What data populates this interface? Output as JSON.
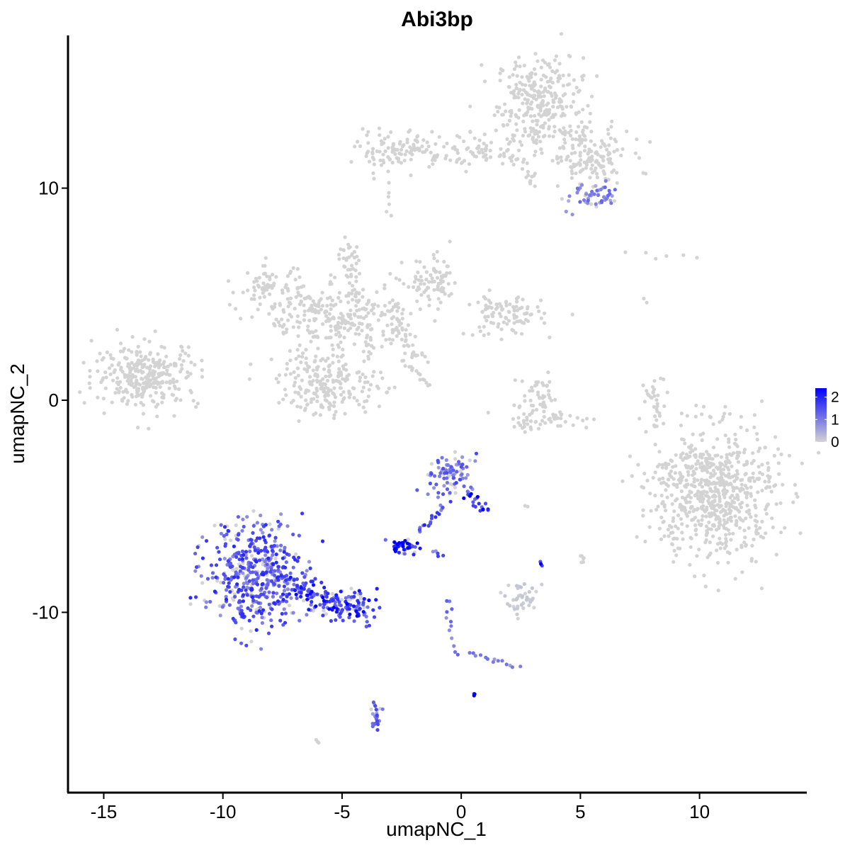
{
  "chart_data": {
    "type": "scatter",
    "title": "Abi3bp",
    "xlabel": "umapNC_1",
    "ylabel": "umapNC_2",
    "xlim": [
      -16.5,
      14.5
    ],
    "ylim": [
      -18.5,
      17.2
    ],
    "x_ticks": [
      -15,
      -10,
      -5,
      0,
      5,
      10
    ],
    "x_tick_labels": [
      "-15",
      "-10",
      "-5",
      "0",
      "5",
      "10"
    ],
    "y_ticks": [
      -10,
      0,
      10
    ],
    "y_tick_labels": [
      "-10",
      "0",
      "10"
    ],
    "grid": false,
    "legend": {
      "placement": "right",
      "type": "color-gradient",
      "range": [
        0,
        2.4
      ],
      "ticks": [
        0,
        1,
        2
      ],
      "tick_labels": [
        "0",
        "1",
        "2"
      ],
      "low_color": "#d3d3d3",
      "high_color": "#0000ff"
    },
    "point_color_low": "#d3d3d3",
    "point_color_high": "#0000ff",
    "clusters": [
      {
        "cx": 3.3,
        "cy": 14.0,
        "sx": 0.9,
        "sy": 1.1,
        "n": 300,
        "expr": 0.0,
        "shape": "ellipse"
      },
      {
        "cx": 5.3,
        "cy": 11.5,
        "sx": 0.9,
        "sy": 0.7,
        "n": 150,
        "expr": 0.0,
        "shape": "ellipse"
      },
      {
        "cx": -2.6,
        "cy": 11.8,
        "sx": 0.9,
        "sy": 0.45,
        "n": 110,
        "expr": 0.0,
        "shape": "ellipse"
      },
      {
        "cx": 0.9,
        "cy": 11.8,
        "sx": 0.7,
        "sy": 0.4,
        "n": 50,
        "expr": 0.0,
        "shape": "ellipse"
      },
      {
        "cx": 5.4,
        "cy": 9.5,
        "sx": 0.5,
        "sy": 0.4,
        "n": 55,
        "expr": 0.35,
        "shape": "ellipse"
      },
      {
        "cx": -13.2,
        "cy": 1.2,
        "sx": 1.1,
        "sy": 0.75,
        "n": 300,
        "expr": 0.0,
        "shape": "ellipse"
      },
      {
        "cx": -5.2,
        "cy": 3.8,
        "sx": 1.5,
        "sy": 0.8,
        "n": 220,
        "expr": 0.0,
        "shape": "ellipse"
      },
      {
        "cx": -8.0,
        "cy": 5.3,
        "sx": 0.7,
        "sy": 0.5,
        "n": 70,
        "expr": 0.0,
        "shape": "ellipse"
      },
      {
        "cx": -1.2,
        "cy": 5.5,
        "sx": 0.6,
        "sy": 0.6,
        "n": 80,
        "expr": 0.0,
        "shape": "ellipse"
      },
      {
        "cx": 1.8,
        "cy": 4.0,
        "sx": 0.8,
        "sy": 0.5,
        "n": 100,
        "expr": 0.0,
        "shape": "ellipse"
      },
      {
        "cx": -5.5,
        "cy": 0.8,
        "sx": 1.1,
        "sy": 0.75,
        "n": 220,
        "expr": 0.0,
        "shape": "ellipse"
      },
      {
        "cx": -4.6,
        "cy": 6.7,
        "sx": 0.25,
        "sy": 0.4,
        "n": 25,
        "expr": 0.0,
        "shape": "ellipse"
      },
      {
        "cx": 3.2,
        "cy": 0.2,
        "sx": 0.5,
        "sy": 0.45,
        "n": 40,
        "expr": 0.0,
        "shape": "ellipse"
      },
      {
        "cx": 3.5,
        "cy": -0.9,
        "sx": 1.0,
        "sy": 0.25,
        "n": 55,
        "expr": 0.0,
        "shape": "ellipse"
      },
      {
        "cx": 8.1,
        "cy": -0.2,
        "sx": 0.2,
        "sy": 0.7,
        "n": 30,
        "expr": 0.0,
        "shape": "ellipse"
      },
      {
        "cx": 10.7,
        "cy": -4.4,
        "sx": 1.3,
        "sy": 1.6,
        "n": 550,
        "expr": 0.0,
        "shape": "ellipse"
      },
      {
        "cx": -8.6,
        "cy": -8.2,
        "sx": 1.0,
        "sy": 1.2,
        "n": 480,
        "expr": 0.55,
        "shape": "ellipse"
      },
      {
        "cx": -4.9,
        "cy": -9.5,
        "sx": 0.7,
        "sy": 0.35,
        "n": 70,
        "expr": 0.75,
        "shape": "ellipse"
      },
      {
        "cx": -0.5,
        "cy": -3.6,
        "sx": 0.45,
        "sy": 0.55,
        "n": 85,
        "expr": 0.45,
        "shape": "ellipse"
      },
      {
        "cx": -2.4,
        "cy": -6.9,
        "sx": 0.3,
        "sy": 0.2,
        "n": 45,
        "expr": 0.85,
        "shape": "ellipse"
      },
      {
        "cx": 2.5,
        "cy": -9.3,
        "sx": 0.35,
        "sy": 0.3,
        "n": 40,
        "expr": 0.05,
        "shape": "ellipse"
      },
      {
        "cx": 10.0,
        "cy": -4.0,
        "sx": 1.1,
        "sy": 1.3,
        "n": 150,
        "expr": 0.0,
        "shape": "ellipse"
      },
      {
        "cx": 0.6,
        "cy": -13.9,
        "sx": 0.04,
        "sy": 0.04,
        "n": 3,
        "expr": 1.0,
        "shape": "ellipse"
      },
      {
        "cx": -3.6,
        "cy": -14.7,
        "sx": 0.12,
        "sy": 0.5,
        "n": 25,
        "expr": 0.45,
        "shape": "ellipse"
      }
    ],
    "paths": [
      {
        "x0": -3.0,
        "y0": 4.5,
        "x1": -1.8,
        "y1": 1.8,
        "n": 50,
        "expr": 0.0,
        "jitter": 0.25
      },
      {
        "x0": -4.8,
        "y0": 6.5,
        "x1": -3.8,
        "y1": 2.5,
        "n": 40,
        "expr": 0.0,
        "jitter": 0.2
      },
      {
        "x0": -2.3,
        "y0": 1.7,
        "x1": -1.3,
        "y1": 0.7,
        "n": 14,
        "expr": 0.0,
        "jitter": 0.05
      },
      {
        "x0": -7.0,
        "y0": 5.0,
        "x1": -5.0,
        "y1": 3.8,
        "n": 30,
        "expr": 0.0,
        "jitter": 0.2
      },
      {
        "x0": 2.0,
        "y0": 11.7,
        "x1": 3.2,
        "y1": 10.2,
        "n": 20,
        "expr": 0.0,
        "jitter": 0.15
      },
      {
        "x0": -1.3,
        "y0": 11.5,
        "x1": 0.2,
        "y1": 11.2,
        "n": 12,
        "expr": 0.0,
        "jitter": 0.1
      },
      {
        "x0": -0.6,
        "y0": -4.9,
        "x1": -1.8,
        "y1": -6.2,
        "n": 18,
        "expr": 0.6,
        "jitter": 0.08
      },
      {
        "x0": 0.2,
        "y0": -4.3,
        "x1": 1.1,
        "y1": -5.3,
        "n": 20,
        "expr": 0.8,
        "jitter": 0.12
      },
      {
        "x0": -7.3,
        "y0": -8.7,
        "x1": -4.0,
        "y1": -10.3,
        "n": 90,
        "expr": 0.7,
        "jitter": 0.3
      },
      {
        "x0": -0.6,
        "y0": -9.3,
        "x1": -0.3,
        "y1": -12.0,
        "n": 12,
        "expr": 0.4,
        "jitter": 0.1
      },
      {
        "x0": 0.3,
        "y0": -11.8,
        "x1": 2.4,
        "y1": -12.6,
        "n": 14,
        "expr": 0.35,
        "jitter": 0.08
      },
      {
        "x0": -1.2,
        "y0": -7.1,
        "x1": -0.8,
        "y1": -7.4,
        "n": 5,
        "expr": 0.5,
        "jitter": 0.05
      },
      {
        "x0": 3.3,
        "y0": -7.6,
        "x1": 3.4,
        "y1": -7.8,
        "n": 3,
        "expr": 1.0,
        "jitter": 0.02
      },
      {
        "x0": 5.0,
        "y0": -7.3,
        "x1": 5.1,
        "y1": -7.6,
        "n": 6,
        "expr": 0.0,
        "jitter": 0.05
      },
      {
        "x0": 7.0,
        "y0": 6.9,
        "x1": 9.9,
        "y1": 6.8,
        "n": 6,
        "expr": 0.0,
        "jitter": 0.1
      },
      {
        "x0": 7.7,
        "y0": 4.8,
        "x1": 7.8,
        "y1": 4.6,
        "n": 2,
        "expr": 0.0,
        "jitter": 0.02
      },
      {
        "x0": -3.0,
        "y0": 10.2,
        "x1": -3.0,
        "y1": 8.6,
        "n": 6,
        "expr": 0.0,
        "jitter": 0.06
      },
      {
        "x0": 2.7,
        "y0": -5.0,
        "x1": 2.8,
        "y1": -5.0,
        "n": 2,
        "expr": 0.0,
        "jitter": 0.02
      },
      {
        "x0": -6.1,
        "y0": -16.0,
        "x1": -6.0,
        "y1": -16.2,
        "n": 3,
        "expr": 0.0,
        "jitter": 0.03
      }
    ]
  }
}
